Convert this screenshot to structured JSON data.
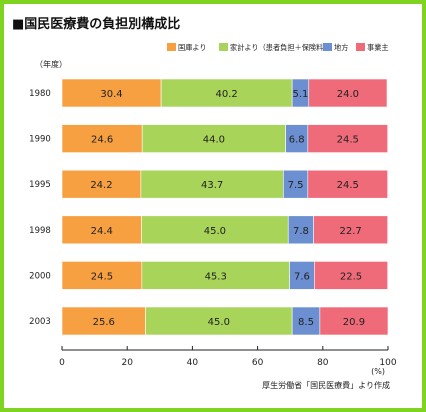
{
  "chart_data": {
    "type": "bar",
    "stacked": true,
    "orientation": "horizontal",
    "title": "■国民医療費の負担別構成比",
    "y_axis_label": "（年度）",
    "x_axis_unit": "(%)",
    "source": "厚生労働省「国民医療費」より作成",
    "xlim": [
      0,
      100
    ],
    "x_ticks": [
      0,
      20,
      40,
      60,
      80,
      100
    ],
    "legend_position": "top-right",
    "grid": false,
    "categories": [
      "1980",
      "1990",
      "1995",
      "1998",
      "2000",
      "2003"
    ],
    "series": [
      {
        "name": "国庫より",
        "color": "#f7a041",
        "values": [
          30.4,
          24.6,
          24.2,
          24.4,
          24.5,
          25.6
        ]
      },
      {
        "name": "家計より（患者負担＋保険料）",
        "color": "#a8d45a",
        "values": [
          40.2,
          44.0,
          43.7,
          45.0,
          45.3,
          45.0
        ]
      },
      {
        "name": "地方",
        "color": "#6b8fd0",
        "values": [
          5.1,
          6.8,
          7.5,
          7.8,
          7.6,
          8.5
        ]
      },
      {
        "name": "事業主",
        "color": "#ef6b7a",
        "values": [
          24.0,
          24.5,
          24.5,
          22.7,
          22.5,
          20.9
        ]
      }
    ]
  }
}
